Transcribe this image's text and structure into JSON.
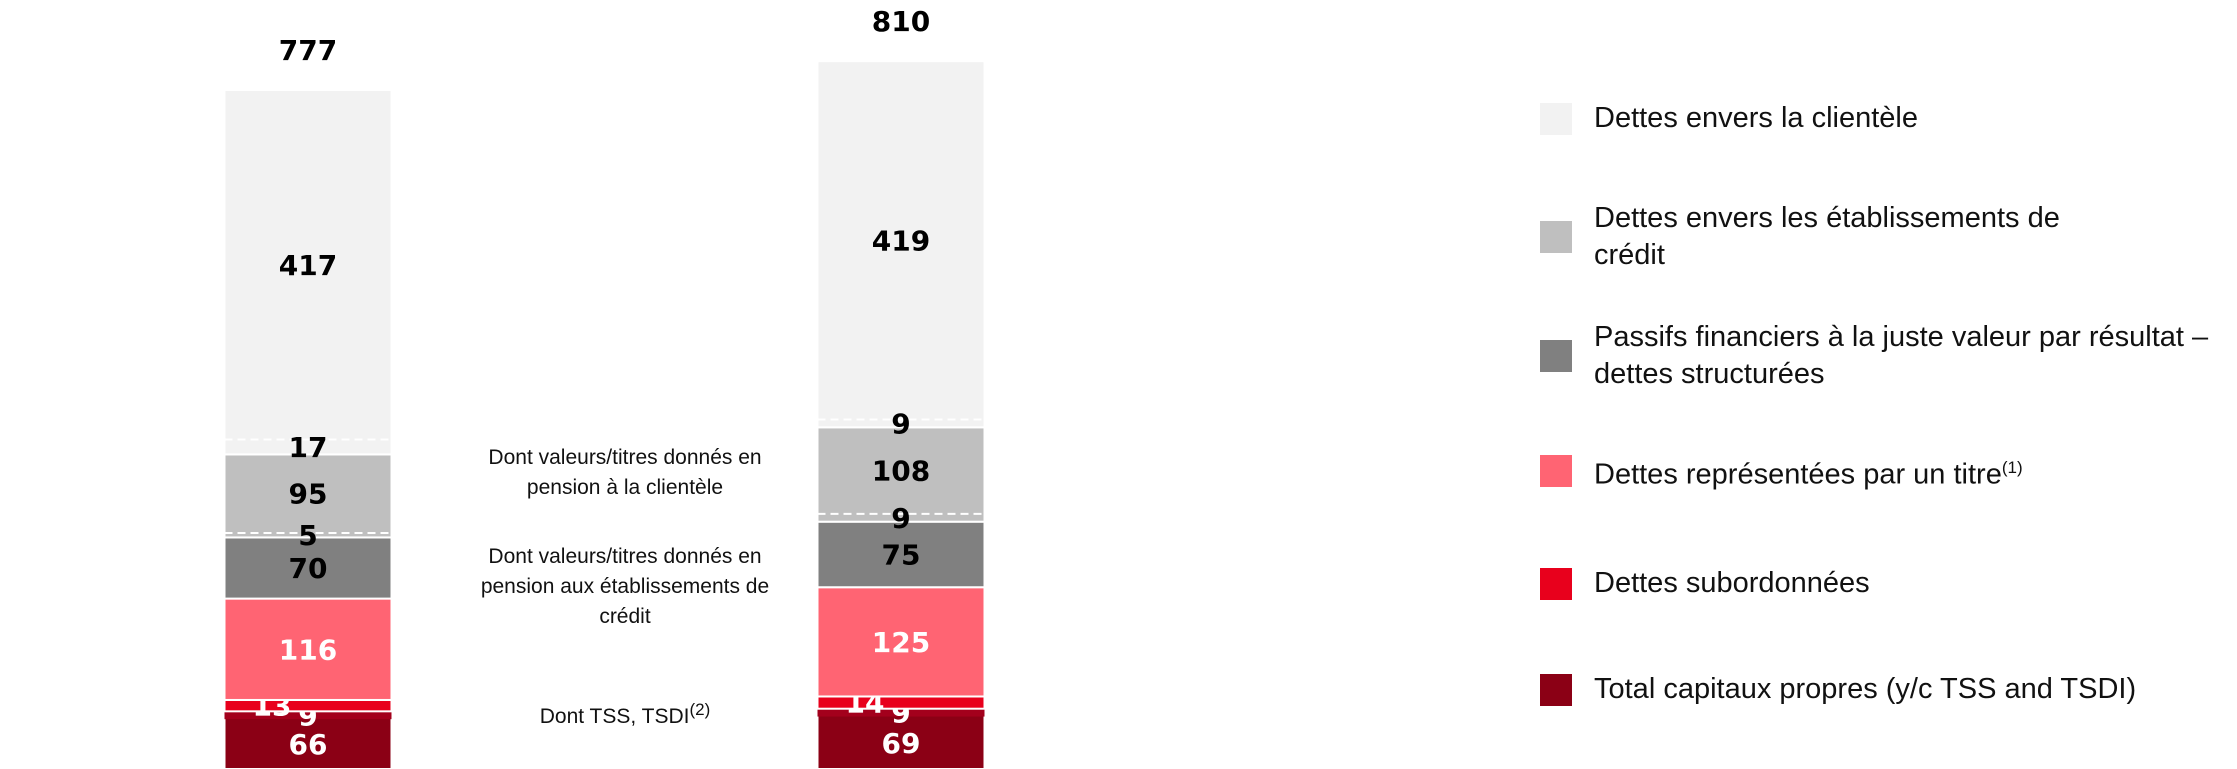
{
  "chart_data": {
    "type": "stacked_bar",
    "categories": [
      null,
      null
    ],
    "series": [
      {
        "name": "Total capitaux propres (y/c TSS and TSDI)",
        "color": "#8b0015",
        "values": [
          66,
          69
        ]
      },
      {
        "name": "Dettes subordonnées",
        "color": "#e8001c",
        "values": [
          13,
          14
        ]
      },
      {
        "name": "Dettes représentées par un titre",
        "footnote": "(1)",
        "color": "#ff6473",
        "values": [
          116,
          125
        ]
      },
      {
        "name": "Passifs financiers à la juste valeur par résultat – dettes structurées",
        "color": "#808080",
        "values": [
          70,
          75
        ]
      },
      {
        "name": "Dettes envers les établissements de crédit",
        "color": "#bfbfbf",
        "values": [
          95,
          108
        ]
      },
      {
        "name": "Dettes envers la clientèle",
        "color": "#f2f2f2",
        "values": [
          417,
          419
        ]
      }
    ],
    "totals": [
      777,
      810
    ],
    "details": [
      {
        "name": "Dont valeurs/titres donnés en pension à la clientèle",
        "series": 5,
        "values": [
          17,
          9
        ]
      },
      {
        "name": "Dont valeurs/titres donnés en pension aux établissements de crédit",
        "series": 4,
        "values": [
          5,
          9
        ]
      },
      {
        "name": "Dont  TSS, TSDI",
        "footnote": "(2)",
        "series": 0,
        "color": "#a3001c",
        "values": [
          9,
          9
        ]
      }
    ],
    "ylim": [
      0,
      880
    ]
  }
}
